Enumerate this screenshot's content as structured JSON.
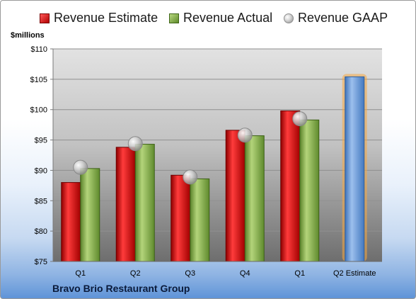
{
  "legend": {
    "estimate": "Revenue Estimate",
    "actual": "Revenue Actual",
    "gaap": "Revenue GAAP"
  },
  "unit_label": "$millions",
  "company": "Bravo Brio Restaurant Group",
  "colors": {
    "estimate": "#cc1111",
    "actual": "#8bb04a",
    "gaap": "#c8c8c8",
    "forecast": "#6f9fdc",
    "forecast_glow": "#f5a742"
  },
  "chart_data": {
    "type": "bar",
    "categories": [
      "Q1",
      "Q2",
      "Q3",
      "Q4",
      "Q1",
      "Q2 Estimate"
    ],
    "series": [
      {
        "name": "Revenue Estimate",
        "values": [
          88.0,
          93.8,
          89.2,
          96.6,
          99.8,
          105.4
        ]
      },
      {
        "name": "Revenue Actual",
        "values": [
          90.3,
          94.3,
          88.6,
          95.7,
          98.3,
          null
        ]
      },
      {
        "name": "Revenue GAAP",
        "values": [
          90.5,
          94.4,
          88.9,
          95.8,
          98.5,
          null
        ]
      }
    ],
    "ylabel": "$millions",
    "ylim": [
      75,
      110
    ],
    "yticks": [
      75,
      80,
      85,
      90,
      95,
      100,
      105,
      110
    ],
    "ytick_labels": [
      "$75",
      "$80",
      "$85",
      "$90",
      "$95",
      "$100",
      "$105",
      "$110"
    ],
    "grid": true,
    "legend": "top"
  }
}
